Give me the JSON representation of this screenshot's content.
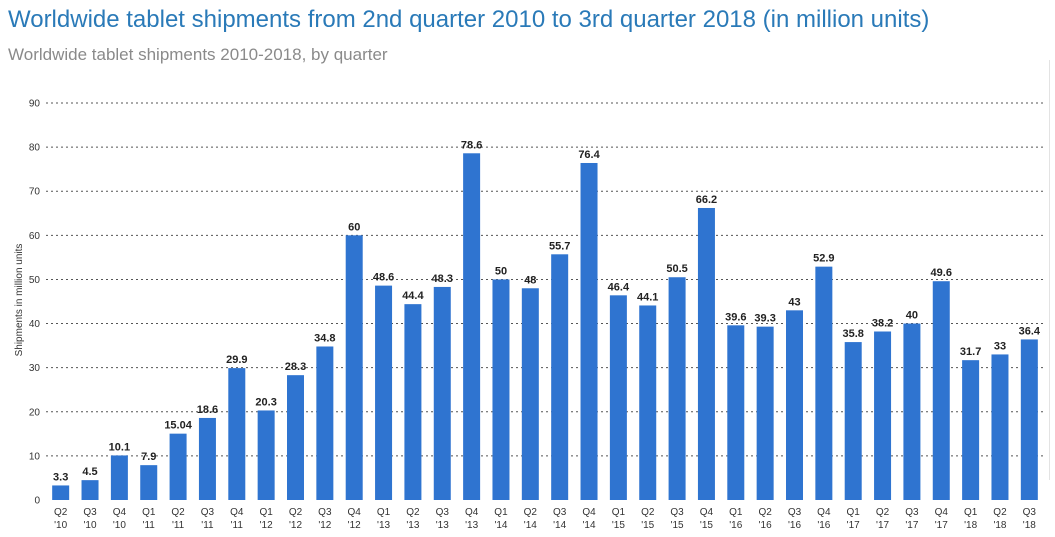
{
  "header": {
    "title": "Worldwide tablet shipments from 2nd quarter 2010 to 3rd quarter 2018 (in million units)",
    "subtitle": "Worldwide tablet shipments 2010-2018, by quarter"
  },
  "colors": {
    "bar": "#2f74d0",
    "title": "#2a7ab8",
    "subtitle": "#8a8a8a"
  },
  "chart_data": {
    "type": "bar",
    "title": "Worldwide tablet shipments from 2nd quarter 2010 to 3rd quarter 2018 (in million units)",
    "subtitle": "Worldwide tablet shipments 2010-2018, by quarter",
    "xlabel": "",
    "ylabel": "Shipments in million units",
    "ylim": [
      0,
      90
    ],
    "yticks": [
      0,
      10,
      20,
      30,
      40,
      50,
      60,
      70,
      80,
      90
    ],
    "grid": true,
    "categories": [
      [
        "Q2",
        "'10"
      ],
      [
        "Q3",
        "'10"
      ],
      [
        "Q4",
        "'10"
      ],
      [
        "Q1",
        "'11"
      ],
      [
        "Q2",
        "'11"
      ],
      [
        "Q3",
        "'11"
      ],
      [
        "Q4",
        "'11"
      ],
      [
        "Q1",
        "'12"
      ],
      [
        "Q2",
        "'12"
      ],
      [
        "Q3",
        "'12"
      ],
      [
        "Q4",
        "'12"
      ],
      [
        "Q1",
        "'13"
      ],
      [
        "Q2",
        "'13"
      ],
      [
        "Q3",
        "'13"
      ],
      [
        "Q4",
        "'13"
      ],
      [
        "Q1",
        "'14"
      ],
      [
        "Q2",
        "'14"
      ],
      [
        "Q3",
        "'14"
      ],
      [
        "Q4",
        "'14"
      ],
      [
        "Q1",
        "'15"
      ],
      [
        "Q2",
        "'15"
      ],
      [
        "Q3",
        "'15"
      ],
      [
        "Q4",
        "'15"
      ],
      [
        "Q1",
        "'16"
      ],
      [
        "Q2",
        "'16"
      ],
      [
        "Q3",
        "'16"
      ],
      [
        "Q4",
        "'16"
      ],
      [
        "Q1",
        "'17"
      ],
      [
        "Q2",
        "'17"
      ],
      [
        "Q3",
        "'17"
      ],
      [
        "Q4",
        "'17"
      ],
      [
        "Q1",
        "'18"
      ],
      [
        "Q2",
        "'18"
      ],
      [
        "Q3",
        "'18"
      ]
    ],
    "values": [
      3.3,
      4.5,
      10.1,
      7.9,
      15.04,
      18.6,
      29.9,
      20.3,
      28.3,
      34.8,
      60,
      48.6,
      44.4,
      48.3,
      78.6,
      50,
      48,
      55.7,
      76.4,
      46.4,
      44.1,
      50.5,
      66.2,
      39.6,
      39.3,
      43,
      52.9,
      35.8,
      38.2,
      40,
      49.6,
      31.7,
      33,
      36.4
    ],
    "value_labels": [
      "3.3",
      "4.5",
      "10.1",
      "7.9",
      "15.04",
      "18.6",
      "29.9",
      "20.3",
      "28.3",
      "34.8",
      "60",
      "48.6",
      "44.4",
      "48.3",
      "78.6",
      "50",
      "48",
      "55.7",
      "76.4",
      "46.4",
      "44.1",
      "50.5",
      "66.2",
      "39.6",
      "39.3",
      "43",
      "52.9",
      "35.8",
      "38.2",
      "40",
      "49.6",
      "31.7",
      "33",
      "36.4"
    ]
  }
}
